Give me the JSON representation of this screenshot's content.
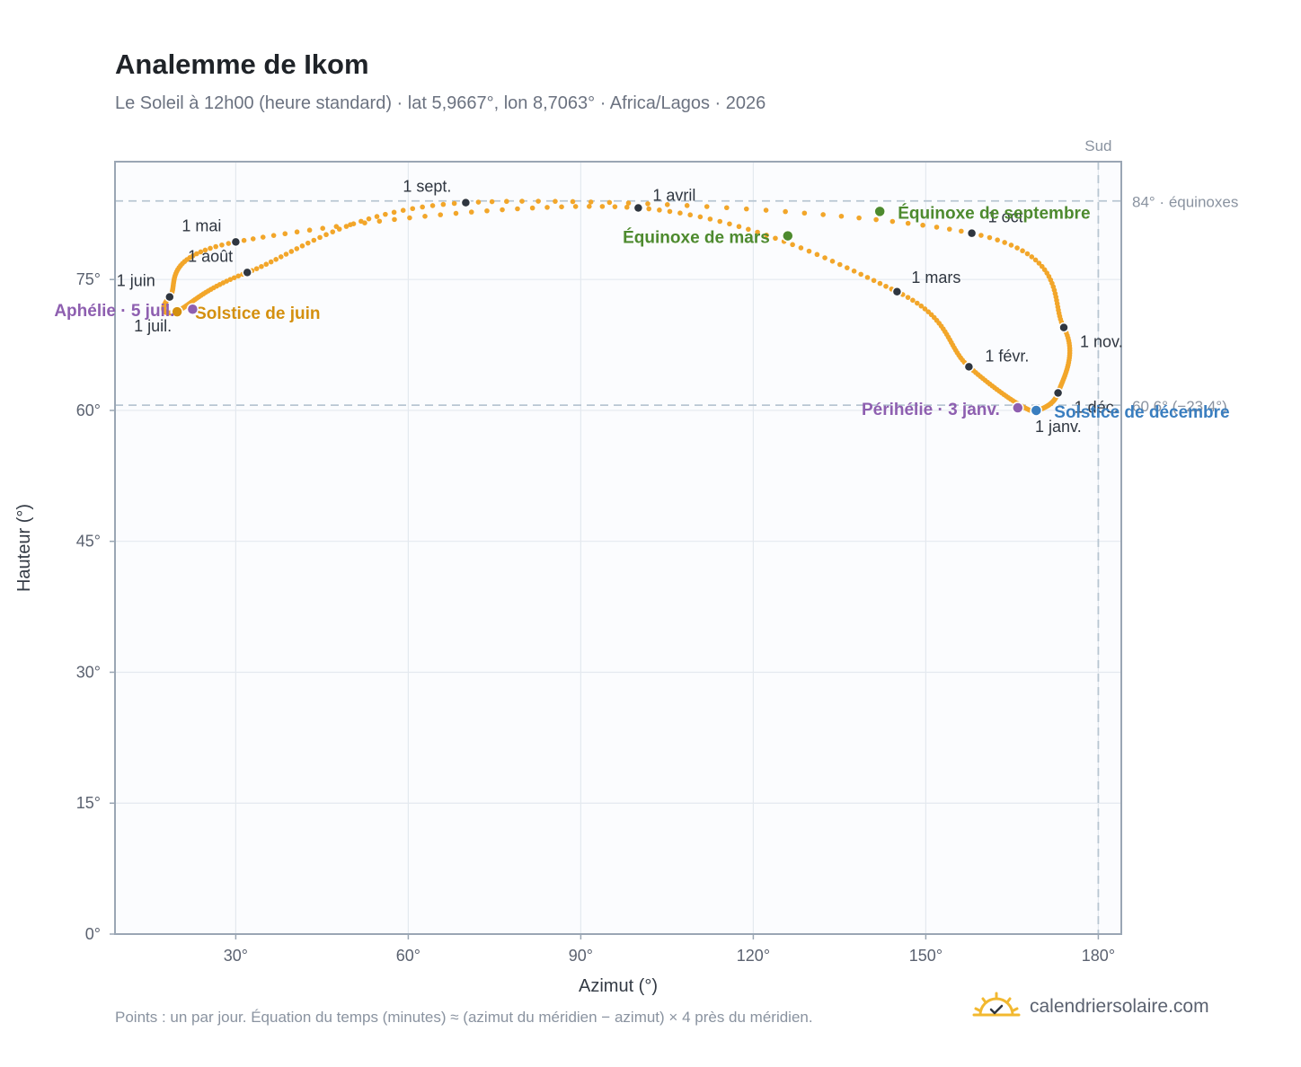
{
  "header": {
    "title": "Analemme de Ikom",
    "subtitle": "Le Soleil à 12h00 (heure standard) · lat 5,9667°, lon 8,7063° · Africa/Lagos · 2026"
  },
  "footer": {
    "note": "Points : un par jour. Équation du temps (minutes) ≈ (azimut du méridien − azimut) × 4 près du méridien.",
    "brand": "calendriersolaire.com",
    "brand_icon": "sun-check-icon"
  },
  "colors": {
    "curve": "#f2a62a",
    "month_marker": "#2f3640",
    "june_solstice": "#d4900f",
    "december_solstice": "#3a7ebf",
    "equinox": "#4d8a2e",
    "apsis": "#8e5fb0",
    "reference_line": "#b8c6d2",
    "plot_background": "#fbfcfe"
  },
  "chart_data": {
    "type": "scatter",
    "xlabel": "Azimut (°)",
    "ylabel": "Hauteur (°)",
    "xlim": [
      9,
      184
    ],
    "ylim": [
      0,
      88.5
    ],
    "x_ticks": [
      30,
      60,
      90,
      120,
      150,
      180
    ],
    "x_tick_labels": [
      "30°",
      "60°",
      "90°",
      "120°",
      "150°",
      "180°"
    ],
    "y_ticks": [
      0,
      15,
      30,
      45,
      60,
      75
    ],
    "y_tick_labels": [
      "0°",
      "15°",
      "30°",
      "45°",
      "60°",
      "75°"
    ],
    "grid": true,
    "legend": "none",
    "reference_lines": [
      {
        "axis": "y",
        "value": 84.0,
        "label": "84° · équinoxes"
      },
      {
        "axis": "y",
        "value": 60.6,
        "label": "60,6° (−23,4°)"
      },
      {
        "axis": "x",
        "value": 180,
        "label": "Sud"
      }
    ],
    "month_markers": [
      {
        "label": "1 janv.",
        "azimuth": 169.0,
        "altitude": 59.8
      },
      {
        "label": "1 févr.",
        "azimuth": 157.5,
        "altitude": 65.0
      },
      {
        "label": "1 mars",
        "azimuth": 145.0,
        "altitude": 73.6
      },
      {
        "label": "1 avril",
        "azimuth": 100.0,
        "altitude": 83.2
      },
      {
        "label": "1 mai",
        "azimuth": 30.0,
        "altitude": 79.3
      },
      {
        "label": "1 juin",
        "azimuth": 18.5,
        "altitude": 73.0
      },
      {
        "label": "1 juil.",
        "azimuth": 19.5,
        "altitude": 71.3
      },
      {
        "label": "1 août",
        "azimuth": 32.0,
        "altitude": 75.8
      },
      {
        "label": "1 sept.",
        "azimuth": 70.0,
        "altitude": 83.8
      },
      {
        "label": "1 oct.",
        "azimuth": 158.0,
        "altitude": 80.3
      },
      {
        "label": "1 nov.",
        "azimuth": 174.0,
        "altitude": 69.5
      },
      {
        "label": "1 déc.",
        "azimuth": 173.0,
        "altitude": 62.0
      }
    ],
    "events": [
      {
        "label": "Solstice de juin",
        "azimuth": 19.8,
        "altitude": 71.3,
        "kind": "june_solstice"
      },
      {
        "label": "Solstice de décembre",
        "azimuth": 169.2,
        "altitude": 60.0,
        "kind": "december_solstice"
      },
      {
        "label": "Équinoxe de mars",
        "azimuth": 126.0,
        "altitude": 80.0,
        "kind": "equinox"
      },
      {
        "label": "Équinoxe de septembre",
        "azimuth": 142.0,
        "altitude": 82.8,
        "kind": "equinox"
      },
      {
        "label": "Aphélie · 5 juil.",
        "azimuth": 22.5,
        "altitude": 71.6,
        "kind": "apsis"
      },
      {
        "label": "Périhélie · 3 janv.",
        "azimuth": 166.0,
        "altitude": 60.3,
        "kind": "apsis"
      }
    ]
  }
}
